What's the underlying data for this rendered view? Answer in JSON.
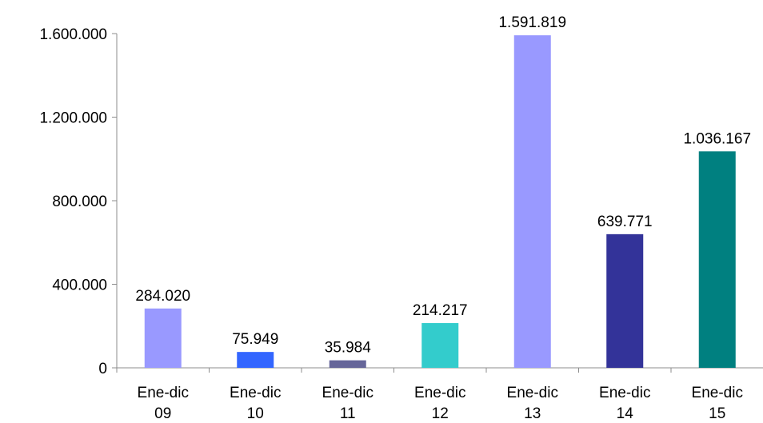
{
  "chart_data": {
    "type": "bar",
    "title": "",
    "xlabel": "",
    "ylabel": "",
    "ylim": [
      0,
      1600000
    ],
    "yticks": [
      0,
      400000,
      800000,
      1200000,
      1600000
    ],
    "ytick_labels": [
      "0",
      "400.000",
      "800.000",
      "1.200.000",
      "1.600.000"
    ],
    "grid": false,
    "legend": "none",
    "categories": [
      [
        "Ene-dic",
        "09"
      ],
      [
        "Ene-dic",
        "10"
      ],
      [
        "Ene-dic",
        "11"
      ],
      [
        "Ene-dic",
        "12"
      ],
      [
        "Ene-dic",
        "13"
      ],
      [
        "Ene-dic",
        "14"
      ],
      [
        "Ene-dic",
        "15"
      ]
    ],
    "values": [
      284020,
      75949,
      35984,
      214217,
      1591819,
      639771,
      1036167
    ],
    "value_labels": [
      "284.020",
      "75.949",
      "35.984",
      "214.217",
      "1.591.819",
      "639.771",
      "1.036.167"
    ],
    "colors": [
      "#9999ff",
      "#3366ff",
      "#666699",
      "#33cccc",
      "#9999ff",
      "#333399",
      "#008080"
    ]
  }
}
